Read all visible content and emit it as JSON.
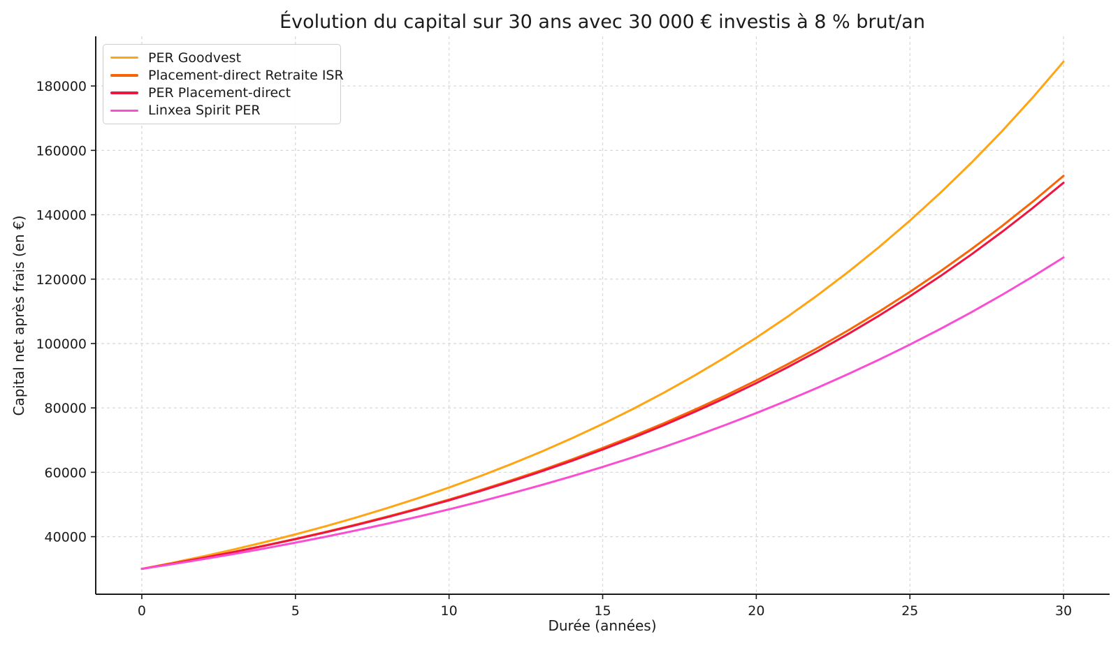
{
  "chart_data": {
    "type": "line",
    "title": "Évolution du capital sur 30 ans avec 30 000 € investis à 8 % brut/an",
    "xlabel": "Durée (années)",
    "ylabel": "Capital net après frais (en €)",
    "grid": true,
    "grid_style": "dashed",
    "legend_position": "upper left",
    "xlim": [
      -1.5,
      31.5
    ],
    "ylim": [
      22120,
      195430
    ],
    "xticks": [
      0,
      5,
      10,
      15,
      20,
      25,
      30
    ],
    "yticks": [
      40000,
      60000,
      80000,
      100000,
      120000,
      140000,
      160000,
      180000
    ],
    "x": [
      0,
      1,
      2,
      3,
      4,
      5,
      6,
      7,
      8,
      9,
      10,
      11,
      12,
      13,
      14,
      15,
      16,
      17,
      18,
      19,
      20,
      21,
      22,
      23,
      24,
      25,
      26,
      27,
      28,
      29,
      30
    ],
    "series": [
      {
        "name": "PER Goodvest",
        "color": "#FFA513",
        "values": [
          30000,
          31890,
          33899,
          36035,
          38305,
          40718,
          43283,
          46010,
          48909,
          51990,
          55265,
          58747,
          62448,
          66382,
          70565,
          75010,
          79736,
          84759,
          90099,
          95775,
          101809,
          108223,
          115041,
          122289,
          129993,
          138182,
          146888,
          156142,
          165979,
          176435,
          187551
        ]
      },
      {
        "name": "Placement-direct Retraite ISR",
        "color": "#F76505",
        "values": [
          30000,
          31668,
          33429,
          35287,
          37249,
          39320,
          41507,
          43814,
          46250,
          48822,
          51537,
          54402,
          57427,
          60620,
          63990,
          67548,
          71304,
          75268,
          79453,
          83871,
          88534,
          93456,
          98652,
          104137,
          109928,
          116039,
          122491,
          129302,
          136491,
          144080,
          152091
        ]
      },
      {
        "name": "PER Placement-direct",
        "color": "#EE1540",
        "values": [
          30000,
          31653,
          33397,
          35237,
          37179,
          39227,
          41389,
          43669,
          46075,
          48614,
          51293,
          54119,
          57101,
          60247,
          63567,
          67070,
          70765,
          74664,
          78778,
          83119,
          87699,
          92531,
          97629,
          103009,
          108685,
          114673,
          120992,
          127658,
          134692,
          142114,
          149944
        ]
      },
      {
        "name": "Linxea Spirit PER",
        "color": "#FA4ED2",
        "values": [
          30000,
          31476,
          33025,
          34649,
          36354,
          38143,
          40019,
          41988,
          44054,
          46222,
          48496,
          50882,
          53385,
          56012,
          58768,
          61659,
          64693,
          67875,
          71215,
          74719,
          78395,
          82252,
          86299,
          90544,
          94999,
          99673,
          104577,
          109722,
          115121,
          120785,
          126727
        ]
      }
    ]
  }
}
